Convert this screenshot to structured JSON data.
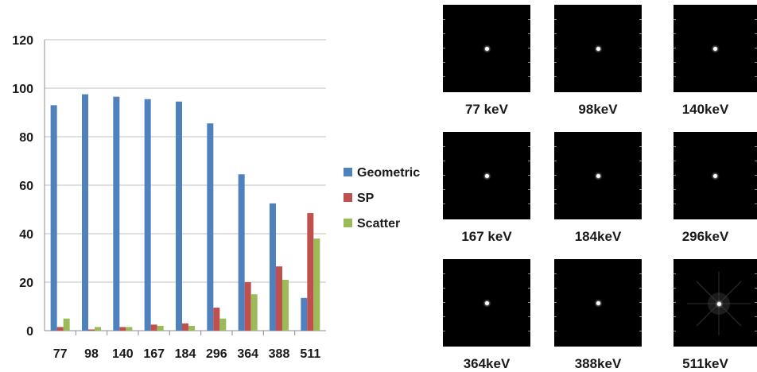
{
  "chart_data": {
    "type": "bar",
    "categories": [
      "77",
      "98",
      "140",
      "167",
      "184",
      "296",
      "364",
      "388",
      "511"
    ],
    "series": [
      {
        "name": "Geometric",
        "color": "#4f81bd",
        "values": [
          93,
          97.5,
          96.5,
          95.5,
          94.5,
          85.5,
          64.5,
          52.5,
          13.5
        ]
      },
      {
        "name": "SP",
        "color": "#c0504d",
        "values": [
          1.5,
          0.5,
          1.5,
          2.5,
          3.0,
          9.5,
          20.0,
          26.5,
          48.5
        ]
      },
      {
        "name": "Scatter",
        "color": "#9bbb59",
        "values": [
          5.0,
          1.5,
          1.5,
          2.0,
          2.0,
          5.0,
          15.0,
          21.0,
          38.0
        ]
      }
    ],
    "ylim": [
      0,
      120
    ],
    "yticks": [
      "0",
      "20",
      "40",
      "60",
      "80",
      "100",
      "120"
    ],
    "grid": true,
    "legend": "right"
  },
  "psf_panel": {
    "captions": [
      "77 keV",
      "98keV",
      "140keV",
      "167 keV",
      "184keV",
      "296keV",
      "364keV",
      "388keV",
      "511keV"
    ],
    "background": "#000000",
    "dot_color": "#ffffff"
  }
}
